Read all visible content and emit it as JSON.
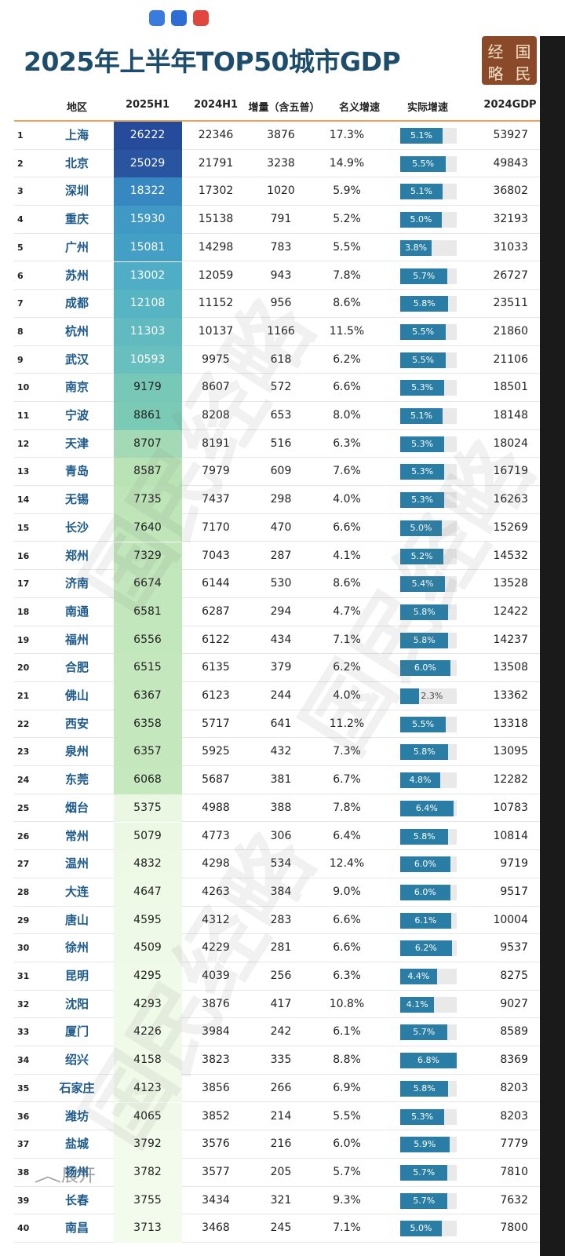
{
  "title": "2025年上半年TOP50城市GDP",
  "logo": [
    "经",
    "国",
    "略",
    "民"
  ],
  "watermark": "国民经略",
  "expand": "展开",
  "table": {
    "header": [
      "地区",
      "2025H1",
      "2024H1",
      "增量（含五普）",
      "名义增速",
      "实际增速",
      "2024GDP"
    ],
    "rows": [
      [
        1,
        "上海",
        26222,
        22346,
        3876,
        "17.3%",
        "5.1%",
        53927
      ],
      [
        2,
        "北京",
        25029,
        21791,
        3238,
        "14.9%",
        "5.5%",
        49843
      ],
      [
        3,
        "深圳",
        18322,
        17302,
        1020,
        "5.9%",
        "5.1%",
        36802
      ],
      [
        4,
        "重庆",
        15930,
        15138,
        791,
        "5.2%",
        "5.0%",
        32193
      ],
      [
        5,
        "广州",
        15081,
        14298,
        783,
        "5.5%",
        "3.8%",
        31033
      ],
      [
        6,
        "苏州",
        13002,
        12059,
        943,
        "7.8%",
        "5.7%",
        26727
      ],
      [
        7,
        "成都",
        12108,
        11152,
        956,
        "8.6%",
        "5.8%",
        23511
      ],
      [
        8,
        "杭州",
        11303,
        10137,
        1166,
        "11.5%",
        "5.5%",
        21860
      ],
      [
        9,
        "武汉",
        10593,
        9975,
        618,
        "6.2%",
        "5.5%",
        21106
      ],
      [
        10,
        "南京",
        9179,
        8607,
        572,
        "6.6%",
        "5.3%",
        18501
      ],
      [
        11,
        "宁波",
        8861,
        8208,
        653,
        "8.0%",
        "5.1%",
        18148
      ],
      [
        12,
        "天津",
        8707,
        8191,
        516,
        "6.3%",
        "5.3%",
        18024
      ],
      [
        13,
        "青岛",
        8587,
        7979,
        609,
        "7.6%",
        "5.3%",
        16719
      ],
      [
        14,
        "无锡",
        7735,
        7437,
        298,
        "4.0%",
        "5.3%",
        16263
      ],
      [
        15,
        "长沙",
        7640,
        7170,
        470,
        "6.6%",
        "5.0%",
        15269
      ],
      [
        16,
        "郑州",
        7329,
        7043,
        287,
        "4.1%",
        "5.2%",
        14532
      ],
      [
        17,
        "济南",
        6674,
        6144,
        530,
        "8.6%",
        "5.4%",
        13528
      ],
      [
        18,
        "南通",
        6581,
        6287,
        294,
        "4.7%",
        "5.8%",
        12422
      ],
      [
        19,
        "福州",
        6556,
        6122,
        434,
        "7.1%",
        "5.8%",
        14237
      ],
      [
        20,
        "合肥",
        6515,
        6135,
        379,
        "6.2%",
        "6.0%",
        13508
      ],
      [
        21,
        "佛山",
        6367,
        6123,
        244,
        "4.0%",
        "2.3%",
        13362
      ],
      [
        22,
        "西安",
        6358,
        5717,
        641,
        "11.2%",
        "5.5%",
        13318
      ],
      [
        23,
        "泉州",
        6357,
        5925,
        432,
        "7.3%",
        "5.8%",
        13095
      ],
      [
        24,
        "东莞",
        6068,
        5687,
        381,
        "6.7%",
        "4.8%",
        12282
      ],
      [
        25,
        "烟台",
        5375,
        4988,
        388,
        "7.8%",
        "6.4%",
        10783
      ],
      [
        26,
        "常州",
        5079,
        4773,
        306,
        "6.4%",
        "5.8%",
        10814
      ],
      [
        27,
        "温州",
        4832,
        4298,
        534,
        "12.4%",
        "6.0%",
        9719
      ],
      [
        28,
        "大连",
        4647,
        4263,
        384,
        "9.0%",
        "6.0%",
        9517
      ],
      [
        29,
        "唐山",
        4595,
        4312,
        283,
        "6.6%",
        "6.1%",
        10004
      ],
      [
        30,
        "徐州",
        4509,
        4229,
        281,
        "6.6%",
        "6.2%",
        9537
      ],
      [
        31,
        "昆明",
        4295,
        4039,
        256,
        "6.3%",
        "4.4%",
        8275
      ],
      [
        32,
        "沈阳",
        4293,
        3876,
        417,
        "10.8%",
        "4.1%",
        9027
      ],
      [
        33,
        "厦门",
        4226,
        3984,
        242,
        "6.1%",
        "5.7%",
        8589
      ],
      [
        34,
        "绍兴",
        4158,
        3823,
        335,
        "8.8%",
        "6.8%",
        8369
      ],
      [
        35,
        "石家庄",
        4123,
        3856,
        266,
        "6.9%",
        "5.8%",
        8203
      ],
      [
        36,
        "潍坊",
        4065,
        3852,
        214,
        "5.5%",
        "5.3%",
        8203
      ],
      [
        37,
        "盐城",
        3792,
        3576,
        216,
        "6.0%",
        "5.9%",
        7779
      ],
      [
        38,
        "扬州",
        3782,
        3577,
        205,
        "5.7%",
        "5.7%",
        7810
      ],
      [
        39,
        "长春",
        3755,
        3434,
        321,
        "9.3%",
        "5.7%",
        7632
      ],
      [
        40,
        "南昌",
        3713,
        3468,
        245,
        "7.1%",
        "5.0%",
        7800
      ]
    ]
  }
}
